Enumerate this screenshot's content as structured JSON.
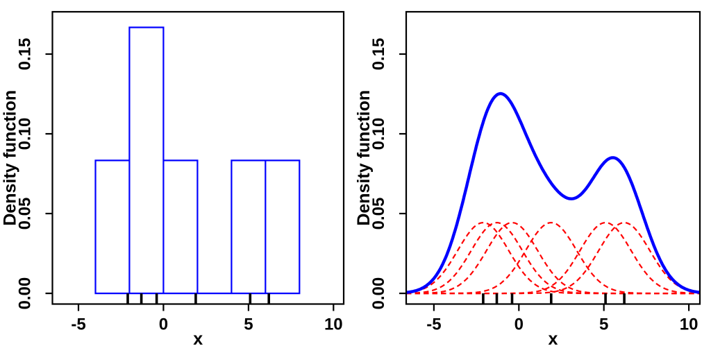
{
  "figure": {
    "background": "#ffffff",
    "axis_color": "#000000",
    "text_color": "#000000"
  },
  "chart_data": [
    {
      "type": "bar",
      "subtype": "histogram-density",
      "title": "",
      "xlabel": "x",
      "ylabel": "Density function",
      "xlim": [
        -6.53,
        10.6
      ],
      "ylim": [
        -0.0067,
        0.1765
      ],
      "grid": false,
      "legend": "none",
      "x_ticks": [
        -5,
        0,
        5,
        10
      ],
      "x_tick_labels": [
        "-5",
        "0",
        "5",
        "10"
      ],
      "y_ticks": [
        0,
        0.05,
        0.1,
        0.15
      ],
      "y_tick_labels": [
        "0.00",
        "0.05",
        "0.10",
        "0.15"
      ],
      "histogram_breaks": [
        -4,
        -2,
        0,
        2,
        4,
        6,
        8
      ],
      "histogram_densities": [
        0.0833,
        0.1667,
        0.0833,
        0,
        0.0833,
        0.0833
      ],
      "rug_points": [
        -2.1,
        -1.3,
        -0.4,
        1.9,
        5.1,
        6.2
      ],
      "bar_outline_color": "#0000ff",
      "bar_fill": "none",
      "rug_color": "#000000"
    },
    {
      "type": "line",
      "subtype": "kernel-density-estimate",
      "title": "",
      "xlabel": "x",
      "ylabel": "Density function",
      "xlim": [
        -6.63,
        10.65
      ],
      "ylim": [
        -0.0067,
        0.1765
      ],
      "grid": false,
      "legend": "none",
      "x_ticks": [
        -5,
        0,
        5,
        10
      ],
      "x_tick_labels": [
        "-5",
        "0",
        "5",
        "10"
      ],
      "y_ticks": [
        0,
        0.05,
        0.1,
        0.15
      ],
      "y_tick_labels": [
        "0.00",
        "0.05",
        "0.10",
        "0.15"
      ],
      "kde_points": [
        -2.1,
        -1.3,
        -0.4,
        1.9,
        5.1,
        6.2
      ],
      "kde_kernel": "gaussian",
      "kde_bandwidth": 1.5,
      "component_peak_height": 0.0443,
      "curve_features": {
        "main_peak": {
          "x": -1.2,
          "y": 0.125
        },
        "trough": {
          "x": 3.1,
          "y": 0.059
        },
        "second_peak": {
          "x": 5.6,
          "y": 0.085
        }
      },
      "rug_points": [
        -2.1,
        -1.3,
        -0.4,
        1.9,
        5.1,
        6.2
      ],
      "kde_curve_color": "#0000ff",
      "kernel_component_color": "#ff0000",
      "kernel_dash": [
        7.5,
        5
      ],
      "rug_color": "#000000"
    }
  ]
}
